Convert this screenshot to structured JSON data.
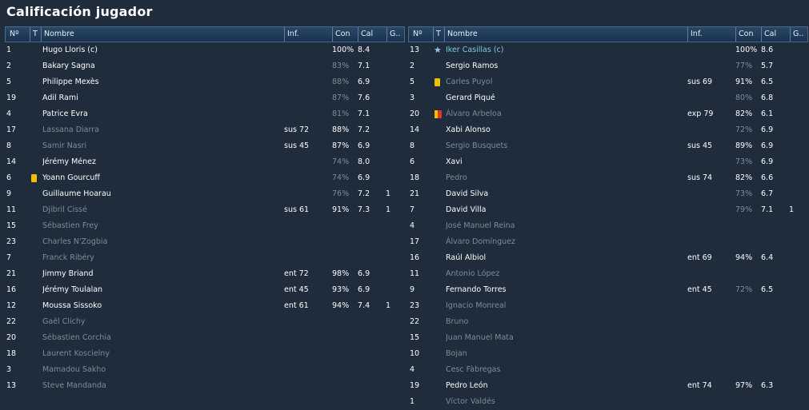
{
  "title": "Calificación jugador",
  "headers": {
    "num": "Nº",
    "t": "T",
    "name": "Nombre",
    "inf": "Inf.",
    "con": "Con",
    "cal": "Cal",
    "g": "G.."
  },
  "teams": [
    {
      "players": [
        {
          "num": "1",
          "t": "",
          "name": "Hugo Lloris (c)",
          "inf": "",
          "con": "100%",
          "cal": "8.4",
          "g": "",
          "dim": false,
          "conDim": false
        },
        {
          "num": "2",
          "t": "",
          "name": "Bakary Sagna",
          "inf": "",
          "con": "83%",
          "cal": "7.1",
          "g": "",
          "dim": false,
          "conDim": true
        },
        {
          "num": "5",
          "t": "",
          "name": "Philippe Mexès",
          "inf": "",
          "con": "88%",
          "cal": "6.9",
          "g": "",
          "dim": false,
          "conDim": true
        },
        {
          "num": "19",
          "t": "",
          "name": "Adil Rami",
          "inf": "",
          "con": "87%",
          "cal": "7.6",
          "g": "",
          "dim": false,
          "conDim": true
        },
        {
          "num": "4",
          "t": "",
          "name": "Patrice Evra",
          "inf": "",
          "con": "81%",
          "cal": "7.1",
          "g": "",
          "dim": false,
          "conDim": true
        },
        {
          "num": "17",
          "t": "",
          "name": "Lassana Diarra",
          "inf": "sus 72",
          "con": "88%",
          "cal": "7.2",
          "g": "",
          "dim": true,
          "conDim": false
        },
        {
          "num": "8",
          "t": "",
          "name": "Samir Nasri",
          "inf": "sus 45",
          "con": "87%",
          "cal": "6.9",
          "g": "",
          "dim": true,
          "conDim": false
        },
        {
          "num": "14",
          "t": "",
          "name": "Jérémy Ménez",
          "inf": "",
          "con": "74%",
          "cal": "8.0",
          "g": "",
          "dim": false,
          "conDim": true
        },
        {
          "num": "6",
          "t": "yellow",
          "name": "Yoann Gourcuff",
          "inf": "",
          "con": "74%",
          "cal": "6.9",
          "g": "",
          "dim": false,
          "conDim": true
        },
        {
          "num": "9",
          "t": "",
          "name": "Guillaume Hoarau",
          "inf": "",
          "con": "76%",
          "cal": "7.2",
          "g": "1",
          "dim": false,
          "conDim": true
        },
        {
          "num": "11",
          "t": "",
          "name": "Djibril Cissé",
          "inf": "sus 61",
          "con": "91%",
          "cal": "7.3",
          "g": "1",
          "dim": true,
          "conDim": false
        },
        {
          "num": "15",
          "t": "",
          "name": "Sébastien Frey",
          "inf": "",
          "con": "",
          "cal": "",
          "g": "",
          "dim": true,
          "conDim": false
        },
        {
          "num": "23",
          "t": "",
          "name": "Charles N'Zogbia",
          "inf": "",
          "con": "",
          "cal": "",
          "g": "",
          "dim": true,
          "conDim": false
        },
        {
          "num": "7",
          "t": "",
          "name": "Franck Ribéry",
          "inf": "",
          "con": "",
          "cal": "",
          "g": "",
          "dim": true,
          "conDim": false
        },
        {
          "num": "21",
          "t": "",
          "name": "Jimmy Briand",
          "inf": "ent 72",
          "con": "98%",
          "cal": "6.9",
          "g": "",
          "dim": false,
          "conDim": false
        },
        {
          "num": "16",
          "t": "",
          "name": "Jérémy Toulalan",
          "inf": "ent 45",
          "con": "93%",
          "cal": "6.9",
          "g": "",
          "dim": false,
          "conDim": false
        },
        {
          "num": "12",
          "t": "",
          "name": "Moussa Sissoko",
          "inf": "ent 61",
          "con": "94%",
          "cal": "7.4",
          "g": "1",
          "dim": false,
          "conDim": false
        },
        {
          "num": "22",
          "t": "",
          "name": "Gaël Clichy",
          "inf": "",
          "con": "",
          "cal": "",
          "g": "",
          "dim": true,
          "conDim": false
        },
        {
          "num": "20",
          "t": "",
          "name": "Sébastien Corchia",
          "inf": "",
          "con": "",
          "cal": "",
          "g": "",
          "dim": true,
          "conDim": false
        },
        {
          "num": "18",
          "t": "",
          "name": "Laurent Koscielny",
          "inf": "",
          "con": "",
          "cal": "",
          "g": "",
          "dim": true,
          "conDim": false
        },
        {
          "num": "3",
          "t": "",
          "name": "Mamadou Sakho",
          "inf": "",
          "con": "",
          "cal": "",
          "g": "",
          "dim": true,
          "conDim": false
        },
        {
          "num": "13",
          "t": "",
          "name": "Steve Mandanda",
          "inf": "",
          "con": "",
          "cal": "",
          "g": "",
          "dim": true,
          "conDim": false
        }
      ]
    },
    {
      "players": [
        {
          "num": "13",
          "t": "star",
          "name": "Iker Casillas (c)",
          "inf": "",
          "con": "100%",
          "cal": "8.6",
          "g": "",
          "dim": false,
          "conDim": false,
          "captain": true
        },
        {
          "num": "2",
          "t": "",
          "name": "Sergio Ramos",
          "inf": "",
          "con": "77%",
          "cal": "5.7",
          "g": "",
          "dim": false,
          "conDim": true
        },
        {
          "num": "5",
          "t": "yellow",
          "name": "Carles Puyol",
          "inf": "sus 69",
          "con": "91%",
          "cal": "6.5",
          "g": "",
          "dim": true,
          "conDim": false
        },
        {
          "num": "3",
          "t": "",
          "name": "Gerard Piqué",
          "inf": "",
          "con": "80%",
          "cal": "6.8",
          "g": "",
          "dim": false,
          "conDim": true
        },
        {
          "num": "20",
          "t": "yellowred",
          "name": "Álvaro Arbeloa",
          "inf": "exp 79",
          "con": "82%",
          "cal": "6.1",
          "g": "",
          "dim": true,
          "conDim": false
        },
        {
          "num": "14",
          "t": "",
          "name": "Xabi Alonso",
          "inf": "",
          "con": "72%",
          "cal": "6.9",
          "g": "",
          "dim": false,
          "conDim": true
        },
        {
          "num": "8",
          "t": "",
          "name": "Sergio Busquets",
          "inf": "sus 45",
          "con": "89%",
          "cal": "6.9",
          "g": "",
          "dim": true,
          "conDim": false
        },
        {
          "num": "6",
          "t": "",
          "name": "Xavi",
          "inf": "",
          "con": "73%",
          "cal": "6.9",
          "g": "",
          "dim": false,
          "conDim": true
        },
        {
          "num": "18",
          "t": "",
          "name": "Pedro",
          "inf": "sus 74",
          "con": "82%",
          "cal": "6.6",
          "g": "",
          "dim": true,
          "conDim": false
        },
        {
          "num": "21",
          "t": "",
          "name": "David Silva",
          "inf": "",
          "con": "73%",
          "cal": "6.7",
          "g": "",
          "dim": false,
          "conDim": true
        },
        {
          "num": "7",
          "t": "",
          "name": "David Villa",
          "inf": "",
          "con": "79%",
          "cal": "7.1",
          "g": "1",
          "dim": false,
          "conDim": true
        },
        {
          "num": "4",
          "t": "",
          "name": "José Manuel Reina",
          "inf": "",
          "con": "",
          "cal": "",
          "g": "",
          "dim": true,
          "conDim": false
        },
        {
          "num": "17",
          "t": "",
          "name": "Álvaro Domínguez",
          "inf": "",
          "con": "",
          "cal": "",
          "g": "",
          "dim": true,
          "conDim": false
        },
        {
          "num": "16",
          "t": "",
          "name": "Raúl Albiol",
          "inf": "ent 69",
          "con": "94%",
          "cal": "6.4",
          "g": "",
          "dim": false,
          "conDim": false
        },
        {
          "num": "11",
          "t": "",
          "name": "Antonio López",
          "inf": "",
          "con": "",
          "cal": "",
          "g": "",
          "dim": true,
          "conDim": false
        },
        {
          "num": "9",
          "t": "",
          "name": "Fernando Torres",
          "inf": "ent 45",
          "con": "72%",
          "cal": "6.5",
          "g": "",
          "dim": false,
          "conDim": true
        },
        {
          "num": "23",
          "t": "",
          "name": "Ignacio Monreal",
          "inf": "",
          "con": "",
          "cal": "",
          "g": "",
          "dim": true,
          "conDim": false
        },
        {
          "num": "22",
          "t": "",
          "name": "Bruno",
          "inf": "",
          "con": "",
          "cal": "",
          "g": "",
          "dim": true,
          "conDim": false
        },
        {
          "num": "15",
          "t": "",
          "name": "Juan Manuel Mata",
          "inf": "",
          "con": "",
          "cal": "",
          "g": "",
          "dim": true,
          "conDim": false
        },
        {
          "num": "10",
          "t": "",
          "name": "Bojan",
          "inf": "",
          "con": "",
          "cal": "",
          "g": "",
          "dim": true,
          "conDim": false
        },
        {
          "num": "4",
          "t": "",
          "name": "Cesc Fàbregas",
          "inf": "",
          "con": "",
          "cal": "",
          "g": "",
          "dim": true,
          "conDim": false
        },
        {
          "num": "19",
          "t": "",
          "name": "Pedro León",
          "inf": "ent 74",
          "con": "97%",
          "cal": "6.3",
          "g": "",
          "dim": false,
          "conDim": false
        },
        {
          "num": "1",
          "t": "",
          "name": "Víctor Valdés",
          "inf": "",
          "con": "",
          "cal": "",
          "g": "",
          "dim": true,
          "conDim": false
        }
      ]
    }
  ]
}
